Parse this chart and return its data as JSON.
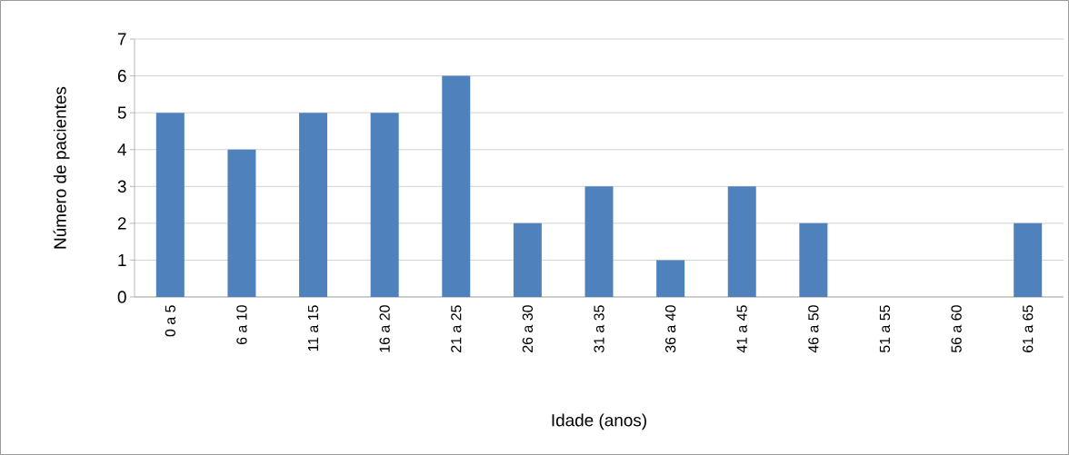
{
  "chart_data": {
    "type": "bar",
    "xlabel": "Idade (anos)",
    "ylabel": "Número de pacientes",
    "categories": [
      "0 a 5",
      "6 a 10",
      "11 a 15",
      "16 a 20",
      "21 a 25",
      "26 a 30",
      "31 a 35",
      "36 a 40",
      "41 a 45",
      "46 a 50",
      "51 a 55",
      "56 a 60",
      "61 a 65"
    ],
    "values": [
      5,
      4,
      5,
      5,
      6,
      2,
      3,
      1,
      3,
      2,
      0,
      0,
      2
    ],
    "color": "#4f81bd",
    "ylim": [
      0,
      7
    ],
    "yticks": [
      0,
      1,
      2,
      3,
      4,
      5,
      6,
      7
    ],
    "grid": "y"
  }
}
